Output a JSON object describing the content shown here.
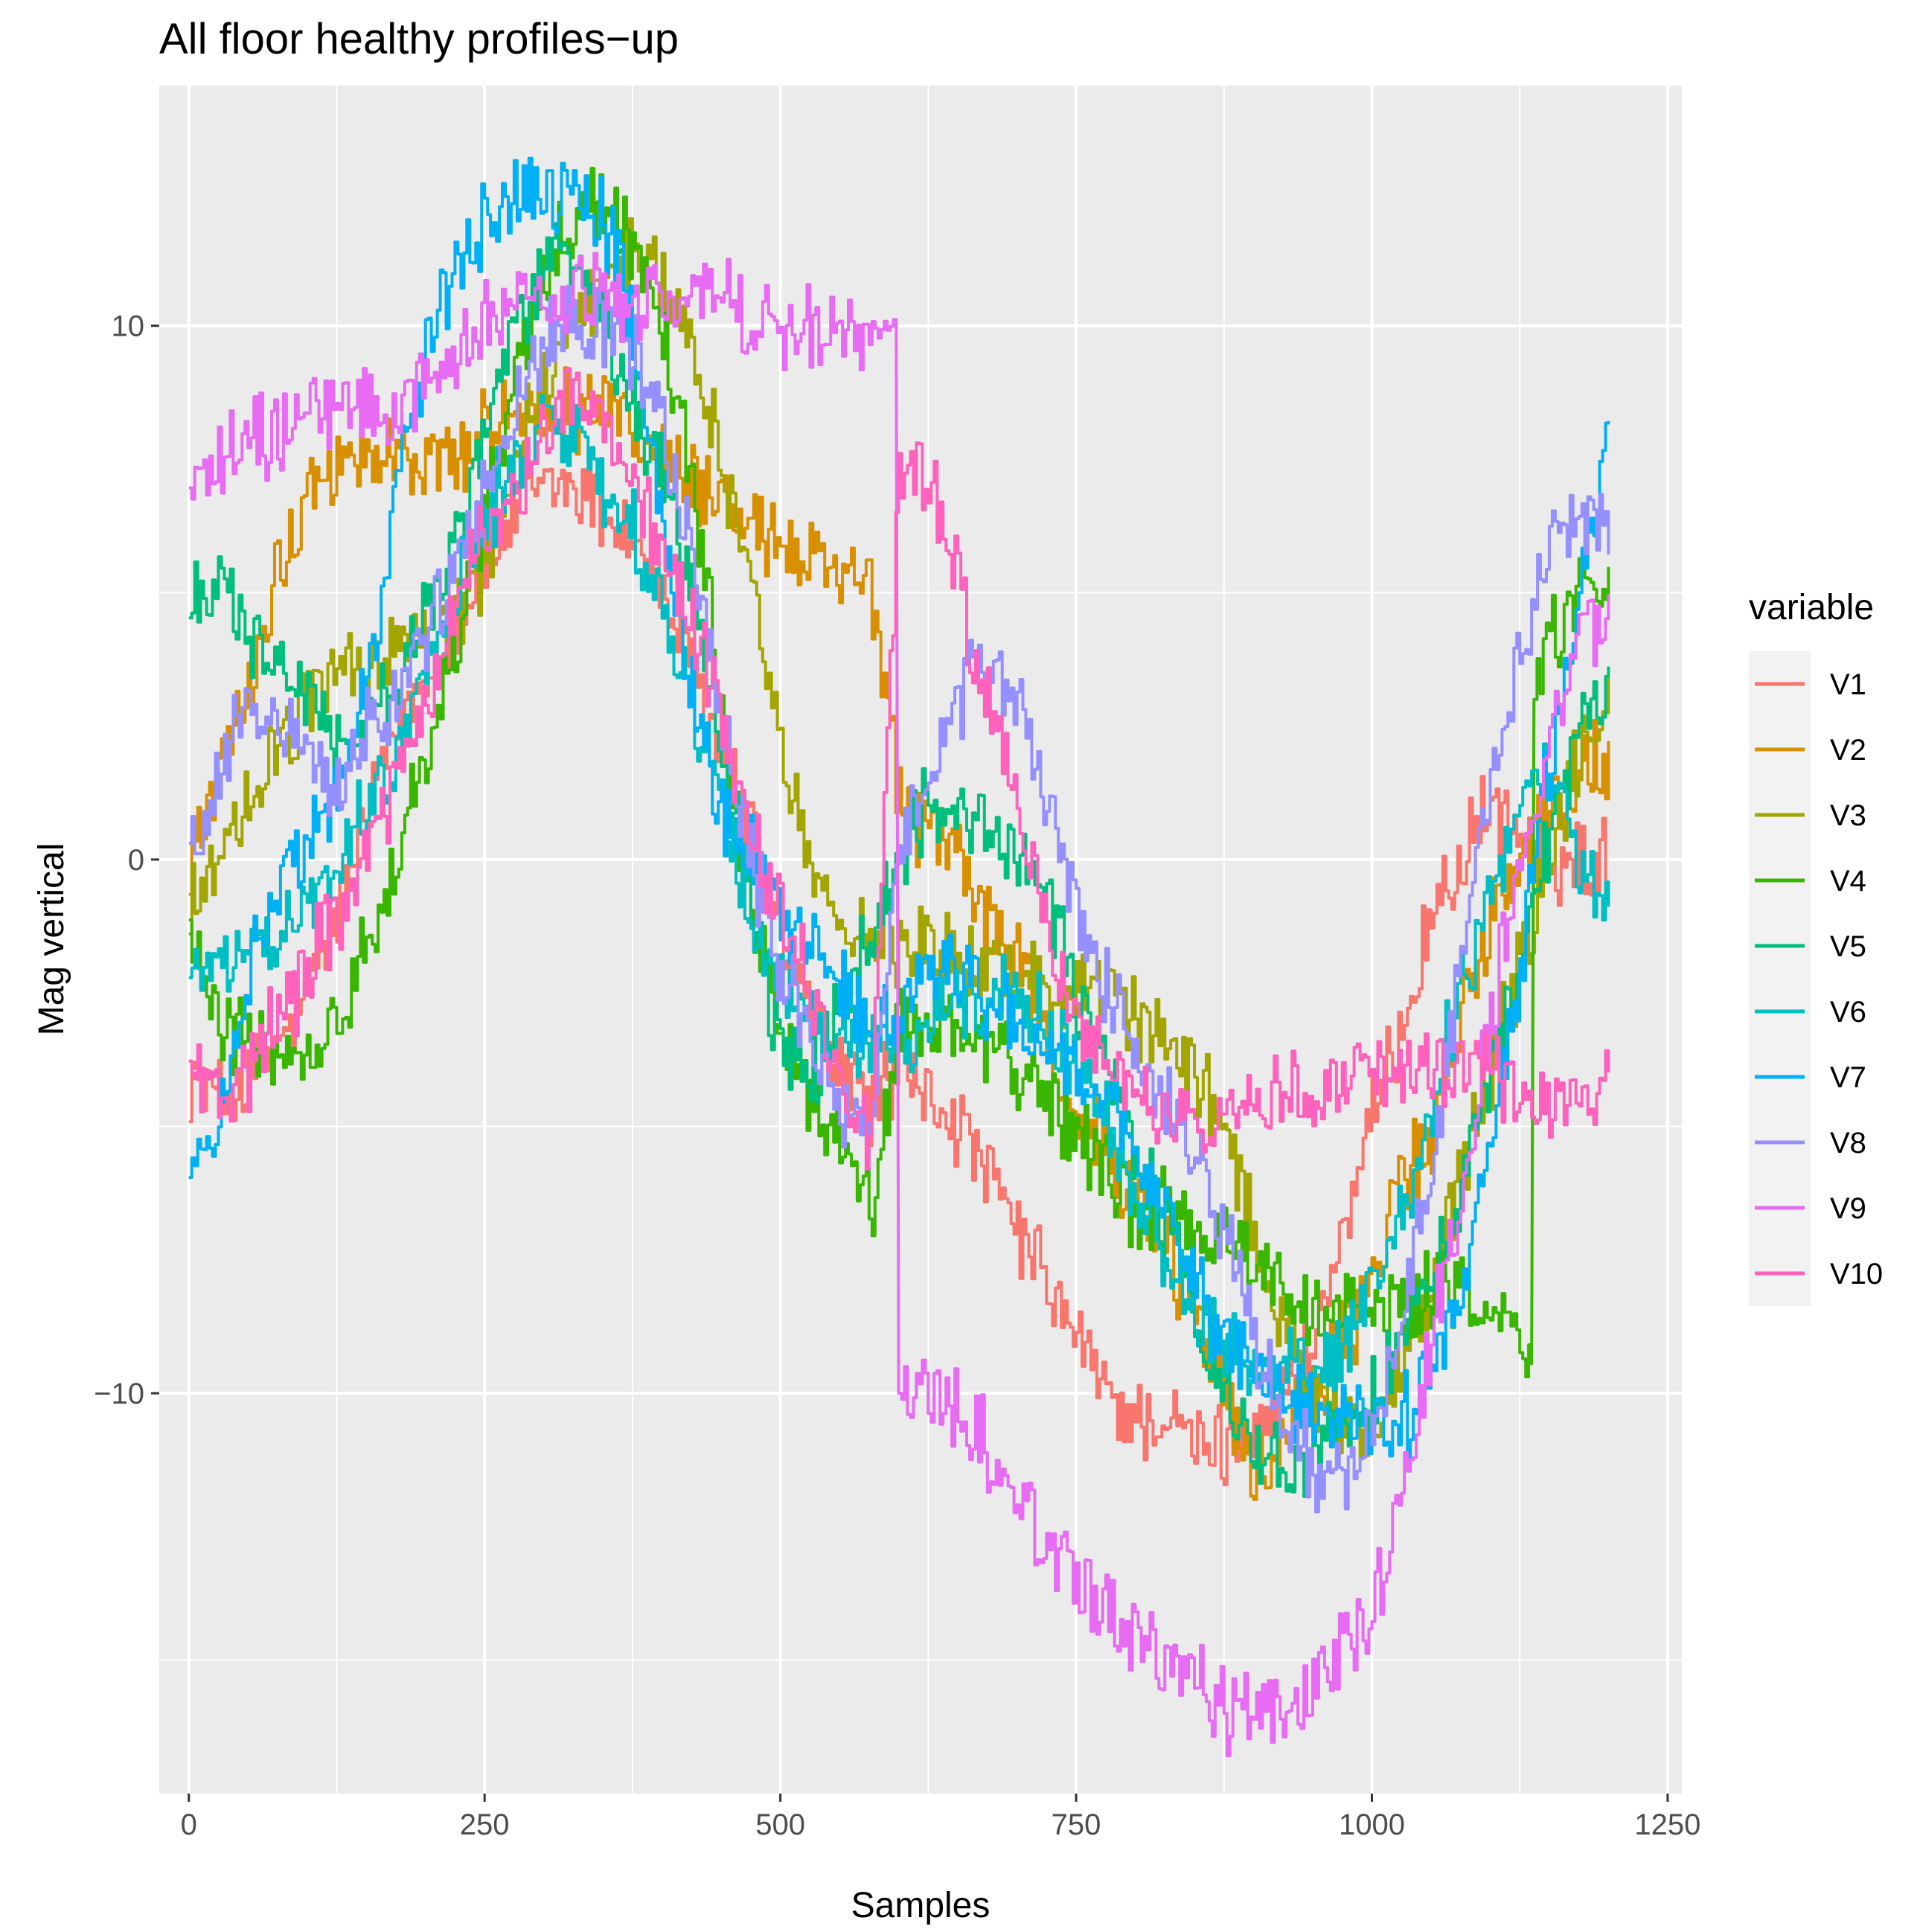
{
  "chart_data": {
    "type": "line",
    "title": "All floor healthy profiles−up",
    "xlabel": "Samples",
    "ylabel": "Mag vertical",
    "xlim": [
      -25,
      1262
    ],
    "ylim": [
      -17.5,
      14.5
    ],
    "x_ticks": [
      0,
      250,
      500,
      750,
      1000,
      1250
    ],
    "x_tick_labels": [
      "0",
      "250",
      "500",
      "750",
      "1000",
      "1250"
    ],
    "y_ticks": [
      -10,
      0,
      10
    ],
    "y_tick_labels": [
      "−10",
      "0",
      "10"
    ],
    "y_minor_ticks": [
      -15,
      -5,
      5
    ],
    "grid": true,
    "legend_title": "variable",
    "legend_position": "right",
    "series": [
      {
        "name": "V1",
        "color": "#F8766D",
        "x": [
          0,
          25,
          50,
          75,
          100,
          125,
          150,
          175,
          200,
          225,
          250,
          275,
          300,
          325,
          350,
          375,
          400,
          425,
          450,
          475,
          500,
          525,
          550,
          575,
          600,
          625,
          650,
          675,
          700,
          725,
          750,
          775,
          800,
          825,
          850,
          875,
          900,
          925,
          950,
          975,
          1000,
          1025,
          1050,
          1075,
          1100,
          1125,
          1150,
          1175,
          1200
        ],
        "values": [
          -4,
          -4.5,
          -4.2,
          -3.5,
          -2.5,
          -1,
          1,
          2.5,
          3.5,
          4.5,
          5.5,
          6.5,
          7,
          7,
          6.5,
          6,
          5,
          3.5,
          2,
          0.5,
          -1.5,
          -3,
          -4,
          -4.5,
          -4,
          -4.5,
          -5,
          -6,
          -7,
          -8,
          -9,
          -10,
          -10.5,
          -10.5,
          -11,
          -11,
          -10.5,
          -10,
          -9,
          -7,
          -5,
          -3,
          -1,
          0,
          1,
          0.5,
          0,
          0,
          0
        ]
      },
      {
        "name": "V2",
        "color": "#D89000",
        "x": [
          0,
          25,
          50,
          75,
          100,
          125,
          150,
          175,
          200,
          225,
          250,
          275,
          300,
          325,
          350,
          375,
          400,
          425,
          450,
          475,
          500,
          525,
          550,
          575,
          600,
          625,
          650,
          675,
          700,
          725,
          750,
          775,
          800,
          825,
          850,
          875,
          900,
          925,
          950,
          975,
          1000,
          1025,
          1050,
          1075,
          1100,
          1125,
          1150,
          1175,
          1200
        ],
        "values": [
          0,
          1.5,
          3.5,
          5.5,
          7,
          7.5,
          7.5,
          7.5,
          7.5,
          7.5,
          8,
          8.5,
          8.5,
          8.5,
          8.5,
          8,
          7.5,
          7,
          6.5,
          6,
          6,
          5.5,
          5.5,
          5,
          1,
          0.5,
          0,
          -1,
          -2,
          -3.5,
          -4.5,
          -5.5,
          -6.5,
          -7.5,
          -8.5,
          -10,
          -11.5,
          -11,
          -10,
          -9,
          -8,
          -6,
          -5,
          -3,
          -1,
          0,
          1,
          1.5,
          2
        ]
      },
      {
        "name": "V3",
        "color": "#A3A500",
        "x": [
          0,
          25,
          50,
          75,
          100,
          125,
          150,
          175,
          200,
          225,
          250,
          275,
          300,
          325,
          350,
          375,
          400,
          425,
          450,
          475,
          500,
          525,
          550,
          575,
          600,
          625,
          650,
          675,
          700,
          725,
          750,
          775,
          800,
          825,
          850,
          875,
          900,
          925,
          950,
          975,
          1000,
          1025,
          1050,
          1075,
          1100,
          1125,
          1150,
          1175,
          1200
        ],
        "values": [
          -1,
          0,
          1,
          2,
          3,
          3.5,
          3.5,
          4,
          4,
          4.5,
          5.5,
          7.5,
          9,
          10,
          11,
          11.5,
          11,
          9.5,
          7.5,
          5,
          2,
          0,
          -1,
          -1.5,
          -1.5,
          -1.5,
          -2,
          -2,
          -2,
          -2.5,
          -2.5,
          -2.5,
          -3,
          -3.5,
          -4,
          -5,
          -7,
          -9,
          -10,
          -10.5,
          -10.5,
          -9.5,
          -8,
          -6,
          -4,
          -2,
          0,
          2,
          3
        ]
      },
      {
        "name": "V4",
        "color": "#39B600",
        "x": [
          0,
          25,
          50,
          75,
          100,
          125,
          150,
          175,
          200,
          225,
          250,
          275,
          300,
          325,
          350,
          375,
          400,
          425,
          450,
          475,
          500,
          525,
          550,
          575,
          600,
          625,
          650,
          675,
          700,
          725,
          750,
          775,
          800,
          825,
          850,
          875,
          900,
          925,
          950,
          975,
          1000,
          1025,
          1050,
          1075,
          1100,
          1125,
          1135,
          1137,
          1150,
          1175,
          1200
        ],
        "values": [
          -1,
          -3,
          -3.5,
          -3.5,
          -3.5,
          -3,
          -1.5,
          0,
          2,
          4,
          6.5,
          9,
          11,
          12,
          12.5,
          11.5,
          10,
          7,
          3,
          -1,
          -3,
          -4.5,
          -5.5,
          -6.5,
          -3,
          -3,
          -3,
          -3.5,
          -4,
          -4.5,
          -5,
          -6,
          -6.5,
          -6.5,
          -7,
          -7,
          -7.5,
          -8,
          -8.5,
          -8.5,
          -8.5,
          -8.5,
          -8,
          -8,
          -8.5,
          -9,
          -9,
          3,
          4,
          5,
          5
        ]
      },
      {
        "name": "V5",
        "color": "#00BF7D",
        "x": [
          0,
          25,
          50,
          75,
          100,
          125,
          150,
          175,
          200,
          225,
          250,
          275,
          300,
          325,
          350,
          375,
          400,
          425,
          450,
          475,
          500,
          525,
          550,
          575,
          600,
          625,
          650,
          675,
          700,
          725,
          750,
          775,
          800,
          825,
          850,
          875,
          900,
          925,
          950,
          975,
          1000,
          1025,
          1050,
          1075,
          1100,
          1125,
          1150,
          1175,
          1200
        ],
        "values": [
          5,
          5,
          4,
          3.5,
          3,
          2,
          2.5,
          3.5,
          4.5,
          6,
          8,
          10,
          11,
          11.5,
          10,
          8.5,
          7,
          5,
          2,
          -1,
          -3.5,
          -4,
          -3,
          -1.5,
          0,
          1,
          1,
          0.5,
          0,
          -1,
          -2.5,
          -4,
          -5.5,
          -7,
          -8.5,
          -10,
          -11,
          -11.5,
          -11,
          -10.5,
          -10,
          -9,
          -8,
          -6,
          -4,
          -2,
          0.5,
          2.5,
          3
        ]
      },
      {
        "name": "V6",
        "color": "#00BFC4",
        "x": [
          0,
          25,
          50,
          75,
          100,
          125,
          150,
          175,
          200,
          225,
          250,
          275,
          300,
          325,
          350,
          375,
          400,
          425,
          450,
          475,
          500,
          525,
          550,
          575,
          600,
          625,
          650,
          675,
          700,
          725,
          750,
          775,
          800,
          825,
          850,
          875,
          900,
          925,
          950,
          975,
          1000,
          1025,
          1050,
          1075,
          1100,
          1125,
          1150,
          1175,
          1200
        ],
        "values": [
          -2,
          -2,
          -1.5,
          -1.5,
          -1,
          0,
          1,
          2,
          3.5,
          5,
          6.5,
          7.5,
          8,
          8,
          7,
          6,
          4.5,
          3,
          1,
          -1,
          -2,
          -3,
          -3.5,
          -3.5,
          -3.5,
          -3,
          -2.5,
          -2.5,
          -2.5,
          -3,
          -4,
          -5,
          -6.5,
          -7.5,
          -8.5,
          -9,
          -9.5,
          -9.5,
          -9.5,
          -9,
          -8,
          -6.5,
          -4.5,
          -2.5,
          -0.5,
          1,
          1.5,
          0,
          -1
        ]
      },
      {
        "name": "V7",
        "color": "#00B0F6",
        "x": [
          0,
          25,
          50,
          75,
          100,
          125,
          150,
          175,
          200,
          225,
          250,
          275,
          300,
          325,
          350,
          375,
          400,
          425,
          450,
          475,
          500,
          525,
          550,
          575,
          600,
          625,
          650,
          675,
          700,
          725,
          750,
          775,
          800,
          825,
          850,
          875,
          900,
          925,
          950,
          975,
          1000,
          1025,
          1050,
          1075,
          1100,
          1125,
          1150,
          1175,
          1200
        ],
        "values": [
          -6,
          -5,
          -2,
          -0.5,
          0.5,
          1.5,
          3.5,
          7,
          9.5,
          11,
          12,
          12.5,
          12.5,
          12.5,
          12,
          10,
          6,
          3,
          1,
          0,
          -1,
          -1.5,
          -2.5,
          -3,
          -3,
          -2,
          -2,
          -2.5,
          -3,
          -3.5,
          -4,
          -4.5,
          -5.5,
          -6.5,
          -8,
          -9,
          -9.5,
          -10,
          -10.5,
          -10.5,
          -10.5,
          -10.5,
          -9.5,
          -8,
          -5,
          -2,
          2,
          5,
          8
        ]
      },
      {
        "name": "V8",
        "color": "#9590FF",
        "x": [
          0,
          25,
          50,
          75,
          100,
          125,
          150,
          175,
          200,
          225,
          250,
          275,
          300,
          325,
          350,
          375,
          400,
          425,
          450,
          475,
          500,
          525,
          550,
          575,
          600,
          625,
          650,
          675,
          700,
          725,
          750,
          775,
          800,
          825,
          850,
          875,
          900,
          925,
          950,
          975,
          1000,
          1025,
          1050,
          1075,
          1100,
          1125,
          1150,
          1175,
          1200
        ],
        "values": [
          0,
          1.5,
          3,
          2.5,
          2,
          1.5,
          2.5,
          3,
          4,
          5.5,
          7,
          8.5,
          9.5,
          10,
          10,
          9.5,
          8,
          5.5,
          2.5,
          0,
          -2,
          -3.5,
          -4.5,
          -5.5,
          0,
          1.5,
          3,
          4,
          3,
          1,
          -1,
          -2.5,
          -3.5,
          -4.5,
          -5.5,
          -7,
          -9,
          -10.5,
          -11.5,
          -11.5,
          -10.5,
          -8.5,
          -5.5,
          -2,
          1.5,
          4,
          6,
          6.5,
          6
        ]
      },
      {
        "name": "V9",
        "color": "#E76BF3",
        "x": [
          0,
          25,
          50,
          75,
          100,
          125,
          150,
          175,
          200,
          225,
          250,
          275,
          300,
          325,
          350,
          375,
          400,
          425,
          450,
          475,
          500,
          525,
          550,
          575,
          598,
          600,
          625,
          650,
          675,
          700,
          725,
          750,
          775,
          800,
          825,
          850,
          875,
          900,
          925,
          950,
          975,
          1000,
          1025,
          1050,
          1075,
          1100,
          1125,
          1150,
          1175,
          1200
        ],
        "values": [
          7,
          7.5,
          8,
          8,
          8.5,
          8.5,
          8.5,
          8.5,
          9,
          9.5,
          10,
          10.5,
          10.5,
          10.5,
          10.5,
          10.5,
          10.5,
          10.5,
          10.5,
          10,
          10,
          10,
          10,
          9.5,
          9.5,
          -10,
          -10,
          -10.5,
          -11,
          -12,
          -13,
          -13.5,
          -14,
          -14.5,
          -15,
          -15.5,
          -16,
          -16,
          -16,
          -15.5,
          -15,
          -14,
          -12,
          -9,
          -6,
          -3,
          0,
          2.5,
          4,
          4.5
        ]
      },
      {
        "name": "V10",
        "color": "#FF62BC",
        "x": [
          0,
          25,
          50,
          75,
          100,
          125,
          150,
          175,
          200,
          225,
          250,
          275,
          300,
          325,
          350,
          375,
          400,
          425,
          450,
          475,
          500,
          525,
          550,
          575,
          600,
          625,
          650,
          675,
          700,
          725,
          750,
          775,
          800,
          825,
          850,
          875,
          900,
          925,
          950,
          975,
          1000,
          1025,
          1050,
          1075,
          1100,
          1125,
          1150,
          1175,
          1200
        ],
        "values": [
          -4,
          -4.5,
          -4,
          -3,
          -2,
          -1,
          0,
          1.5,
          3,
          4.5,
          6,
          7,
          8,
          9,
          8,
          7,
          6,
          4.5,
          2.5,
          0.5,
          -1,
          -2.5,
          -4,
          -5.5,
          7.5,
          7,
          5,
          3,
          1,
          -1.5,
          -3,
          -4,
          -4.5,
          -5,
          -5,
          -5,
          -4.5,
          -4.5,
          -4.5,
          -4,
          -4,
          -4,
          -4,
          -4,
          -4,
          -4.5,
          -4.5,
          -4.5,
          -4
        ]
      }
    ]
  }
}
